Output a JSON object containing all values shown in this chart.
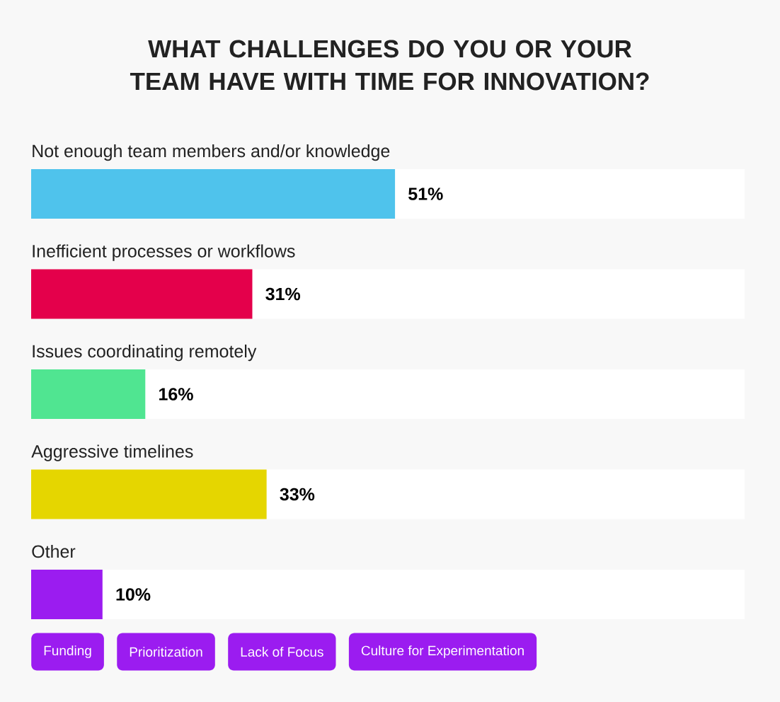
{
  "chart_data": {
    "type": "bar",
    "orientation": "horizontal",
    "title": "WHAT CHALLENGES DO YOU OR YOUR TEAM HAVE WITH TIME FOR INNOVATION?",
    "categories": [
      "Not enough team members and/or knowledge",
      "Inefficient processes or workflows",
      "Issues coordinating remotely",
      "Aggressive timelines",
      "Other"
    ],
    "values": [
      51,
      31,
      16,
      33,
      10
    ],
    "colors": [
      "#4fc3ec",
      "#e4004b",
      "#50e591",
      "#e5d600",
      "#9b1cf0"
    ],
    "value_labels": [
      "51%",
      "31%",
      "16%",
      "33%",
      "10%"
    ],
    "xlim": [
      0,
      100
    ],
    "annotations": [
      "Funding",
      "Prioritization",
      "Lack of Focus",
      "Culture for Experimentation"
    ]
  }
}
